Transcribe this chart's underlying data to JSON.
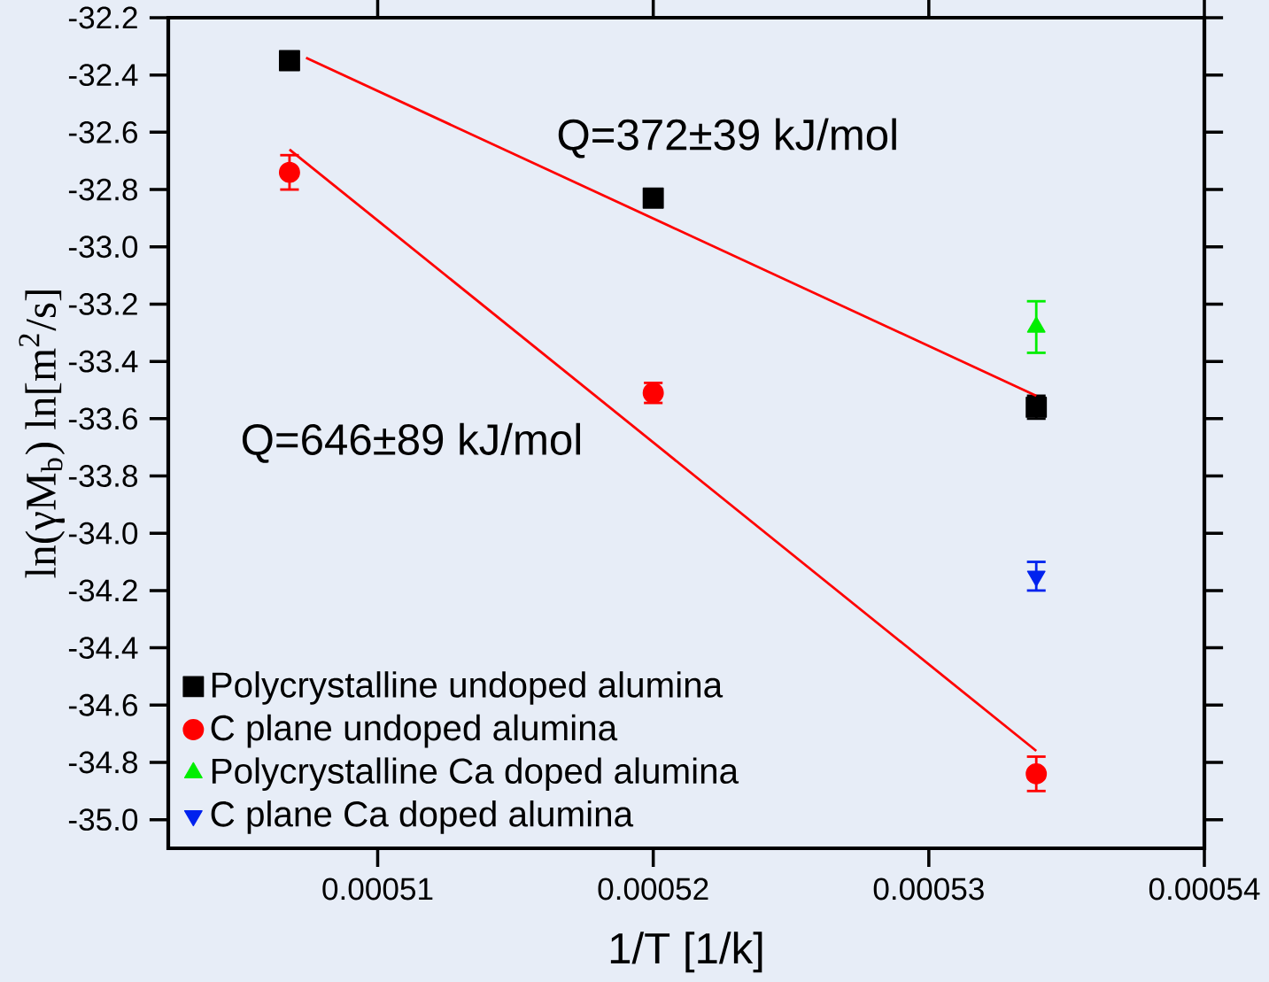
{
  "chart_data": {
    "type": "scatter",
    "xlabel": "1/T  [1/k]",
    "ylabel": "ln(γM$_{b}$) ln[m$^{2}$/s]",
    "annotations": [
      "Q=372±39 kJ/mol",
      "Q=646±89 kJ/mol"
    ],
    "xlim": [
      0.0005024,
      0.00054
    ],
    "ylim": [
      -35.1,
      -32.2
    ],
    "xticks": [
      0.00051,
      0.00052,
      0.00053,
      0.00054
    ],
    "yticks": [
      {
        "value": -35.0,
        "label": "-35.0"
      },
      {
        "value": -34.8,
        "label": "-34.8"
      },
      {
        "value": -34.6,
        "label": "-34.6"
      },
      {
        "value": -34.4,
        "label": "-34.4"
      },
      {
        "value": -34.2,
        "label": "-34.2"
      },
      {
        "value": -34.0,
        "label": "-34.0"
      },
      {
        "value": -33.8,
        "label": "-33.8"
      },
      {
        "value": -33.6,
        "label": "-33.6"
      },
      {
        "value": -33.4,
        "label": "-33.4"
      },
      {
        "value": -33.2,
        "label": "-33.2"
      },
      {
        "value": -33.0,
        "label": "-33.0"
      },
      {
        "value": -32.8,
        "label": "-32.8"
      },
      {
        "value": -32.6,
        "label": "-32.6"
      },
      {
        "value": -32.4,
        "label": "-32.4"
      },
      {
        "value": -32.2,
        "label": "-32.2"
      }
    ],
    "legend": "bottom left",
    "series": [
      {
        "name": "Polycrystalline undoped alumina",
        "color": "#000000",
        "marker": "square",
        "x": [
          0.0005068,
          0.00052,
          0.0005339
        ],
        "values": [
          -32.35,
          -32.83,
          -33.56
        ],
        "errors": [
          0.02,
          null,
          0.04
        ]
      },
      {
        "name": "C plane undoped alumina",
        "color": "#ff0000",
        "marker": "circle",
        "x": [
          0.0005068,
          0.00052,
          0.0005339
        ],
        "values": [
          -32.74,
          -33.51,
          -34.84
        ],
        "errors": [
          0.06,
          0.035,
          0.06
        ]
      },
      {
        "name": "Polycrystalline Ca doped alumina",
        "color": "#00ee00",
        "marker": "triangle",
        "x": [
          0.0005339
        ],
        "values": [
          -33.28
        ],
        "errors": [
          0.09
        ]
      },
      {
        "name": "C plane Ca doped alumina",
        "color": "#0022ee",
        "marker": "triangle-down",
        "x": [
          0.0005339
        ],
        "values": [
          -34.15
        ],
        "errors": [
          0.05
        ]
      },
      {
        "type": "line",
        "color": "#ff0000",
        "marker": "none",
        "x": [
          0.0005074,
          0.0005339
        ],
        "values": [
          -32.34,
          -33.52
        ]
      },
      {
        "type": "line",
        "color": "#ff0000",
        "marker": "none",
        "x": [
          0.0005068,
          0.0005339
        ],
        "values": [
          -32.66,
          -34.76
        ]
      }
    ]
  }
}
